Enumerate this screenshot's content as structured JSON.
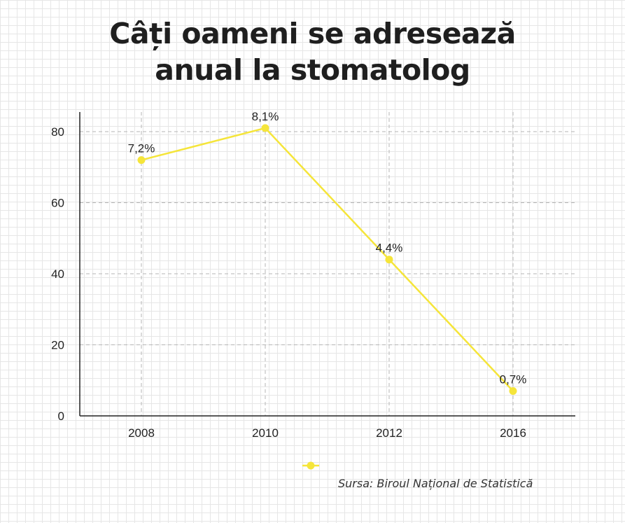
{
  "title_lines": [
    "Câți oameni se adresează",
    "anual la stomatolog"
  ],
  "source": "Sursa: Biroul Național de Statistică",
  "colors": {
    "line": "#f5e53a",
    "axis": "#222222",
    "grid": "#b5b5b5",
    "text": "#222222"
  },
  "chart_data": {
    "type": "line",
    "title": "Câți oameni se adresează anual la stomatolog",
    "categories": [
      "2008",
      "2010",
      "2012",
      "2016"
    ],
    "series": [
      {
        "values": [
          72,
          81,
          44,
          7
        ],
        "labels": [
          "7,2%",
          "8,1%",
          "4,4%",
          "0,7%"
        ]
      }
    ],
    "yticks": [
      0,
      20,
      40,
      60,
      80
    ],
    "ylim": [
      0,
      85
    ],
    "xlabel": "",
    "ylabel": "",
    "grid": true,
    "legend": "bottom-center"
  }
}
